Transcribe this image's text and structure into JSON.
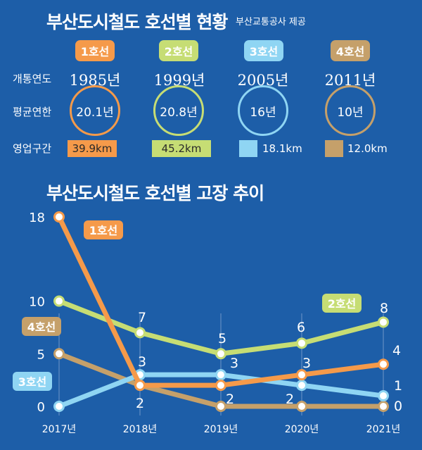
{
  "header": {
    "title": "부산도시철도 호선별 현황",
    "source": "부산교통공사 제공"
  },
  "status": {
    "row_labels": [
      "개통연도",
      "평균연한",
      "영업구간"
    ],
    "lines": [
      {
        "label": "1호선",
        "open_year": "1985년",
        "age": "20.1년",
        "length": "39.9km",
        "color": "#f59a4a"
      },
      {
        "label": "2호선",
        "open_year": "1999년",
        "age": "20.8년",
        "length": "45.2km",
        "color": "#c6dd74"
      },
      {
        "label": "3호선",
        "open_year": "2005년",
        "age": "16년",
        "length": "18.1km",
        "color": "#8fd5f3"
      },
      {
        "label": "4호선",
        "open_year": "2011년",
        "age": "10년",
        "length": "12.0km",
        "color": "#c5a06a"
      }
    ]
  },
  "chart_data": {
    "type": "line",
    "title": "부산도시철도 호선별 고장 추이",
    "categories": [
      "2017년",
      "2018년",
      "2019년",
      "2020년",
      "2021년"
    ],
    "y_ticks": [
      "0",
      "5",
      "10",
      "18"
    ],
    "ylim": [
      0,
      18
    ],
    "series": [
      {
        "name": "1호선",
        "values": [
          18,
          2,
          2,
          3,
          4
        ],
        "color": "#f59a4a"
      },
      {
        "name": "2호선",
        "values": [
          10,
          7,
          5,
          6,
          8
        ],
        "color": "#c6dd74"
      },
      {
        "name": "3호선",
        "values": [
          0,
          3,
          3,
          2,
          1
        ],
        "color": "#8fd5f3"
      },
      {
        "name": "4호선",
        "values": [
          5,
          2,
          0,
          0,
          0
        ],
        "color": "#c5a06a"
      }
    ],
    "data_labels": {
      "2018년": [
        "7",
        "3",
        "2"
      ],
      "2019년": [
        "5",
        "3",
        "2"
      ],
      "2020년": [
        "6",
        "3",
        "2"
      ],
      "2021년": [
        "8",
        "4",
        "1",
        "0"
      ]
    },
    "legend_tags": [
      "1호선",
      "2호선",
      "3호선",
      "4호선"
    ]
  }
}
